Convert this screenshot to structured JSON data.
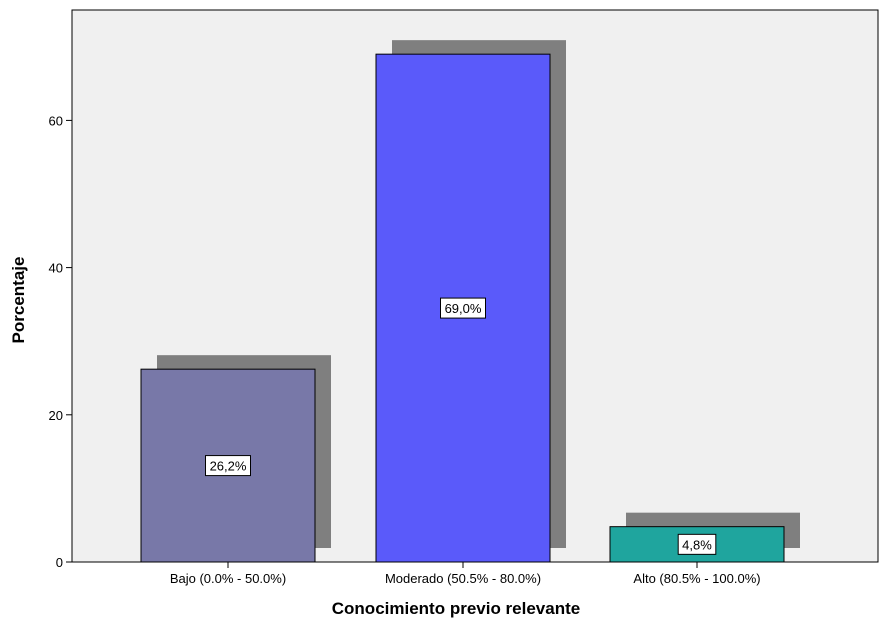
{
  "chart_data": {
    "type": "bar",
    "title": "",
    "xlabel": "Conocimiento previo relevante",
    "ylabel": "Porcentaje",
    "categories": [
      "Bajo (0.0% - 50.0%)",
      "Moderado (50.5% - 80.0%)",
      "Alto (80.5% - 100.0%)"
    ],
    "values": [
      26.2,
      69.0,
      4.8
    ],
    "data_labels": [
      "26,2%",
      "69,0%",
      "4,8%"
    ],
    "bar_colors": [
      "#7878a8",
      "#5a5afa",
      "#1fa59e"
    ],
    "shadow_color": "#7f7f7f",
    "plot_background": "#f0f0f0",
    "ylim": [
      0,
      75
    ],
    "yticks": [
      0,
      20,
      40,
      60
    ],
    "ytick_labels": [
      "0",
      "20",
      "40",
      "60"
    ],
    "grid": false,
    "legend": "none"
  }
}
